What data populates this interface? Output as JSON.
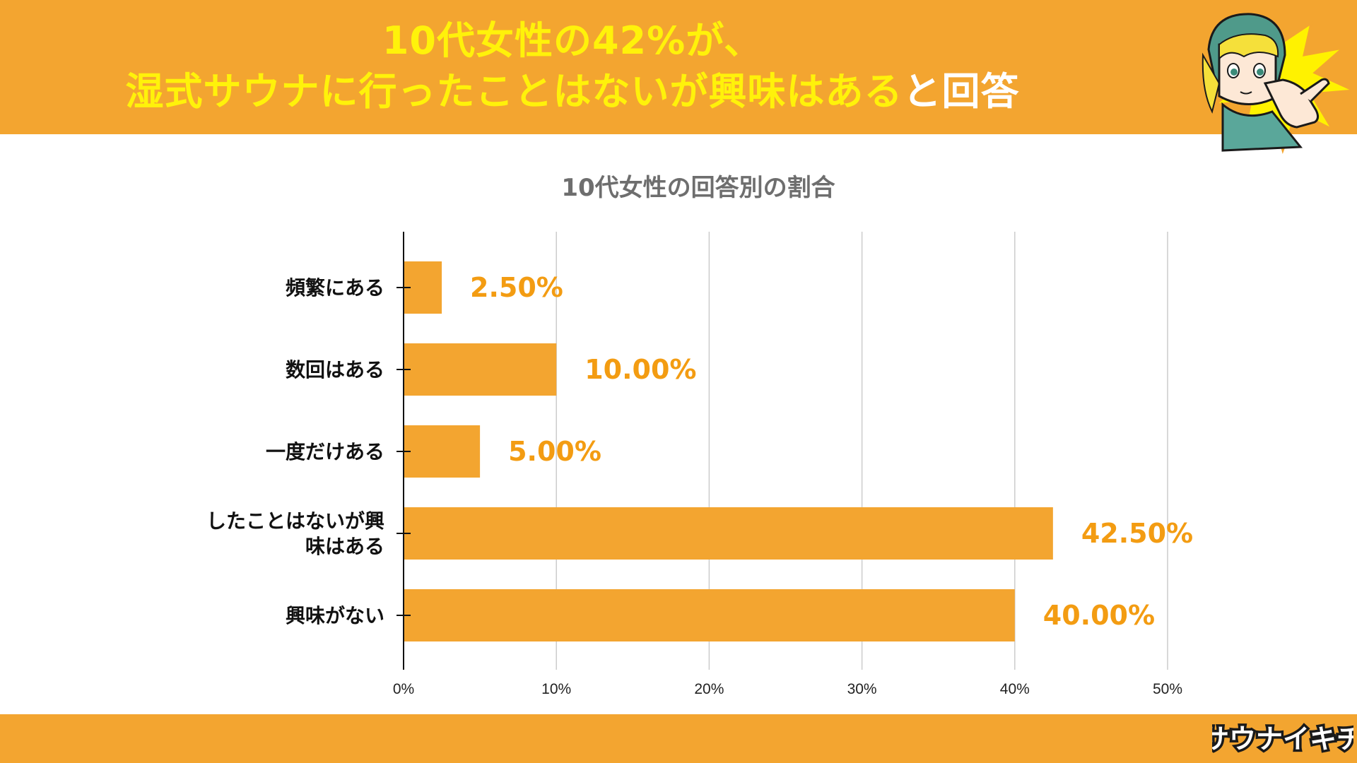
{
  "header": {
    "line1": "10代女性の42%が、",
    "line2_yellow": "湿式サウナに行ったことはないが興味はある",
    "line2_white": "と回答"
  },
  "logo": {
    "text": "サウナイキチ"
  },
  "colors": {
    "accent": "#f3a530",
    "title_yellow": "#fff20a",
    "bar": "#f3a530",
    "label": "#f39c12",
    "grid": "#cccccc",
    "axis_text": "#222222"
  },
  "chart_data": {
    "type": "bar",
    "orientation": "horizontal",
    "title": "10代女性の回答別の割合",
    "categories": [
      "頻繁にある",
      "数回はある",
      "一度だけある",
      "したことはないが興味はある",
      "興味がない"
    ],
    "category_lines": [
      [
        "頻繁にある"
      ],
      [
        "数回はある"
      ],
      [
        "一度だけある"
      ],
      [
        "したことはないが興",
        "味はある"
      ],
      [
        "興味がない"
      ]
    ],
    "values": [
      2.5,
      10.0,
      5.0,
      42.5,
      40.0
    ],
    "value_labels": [
      "2.50%",
      "10.00%",
      "5.00%",
      "42.50%",
      "40.00%"
    ],
    "x_ticks": [
      0,
      10,
      20,
      30,
      40,
      50
    ],
    "x_tick_labels": [
      "0%",
      "10%",
      "20%",
      "30%",
      "40%",
      "50%"
    ],
    "xlim": [
      0,
      50
    ],
    "grid": true,
    "xlabel": "",
    "ylabel": ""
  }
}
